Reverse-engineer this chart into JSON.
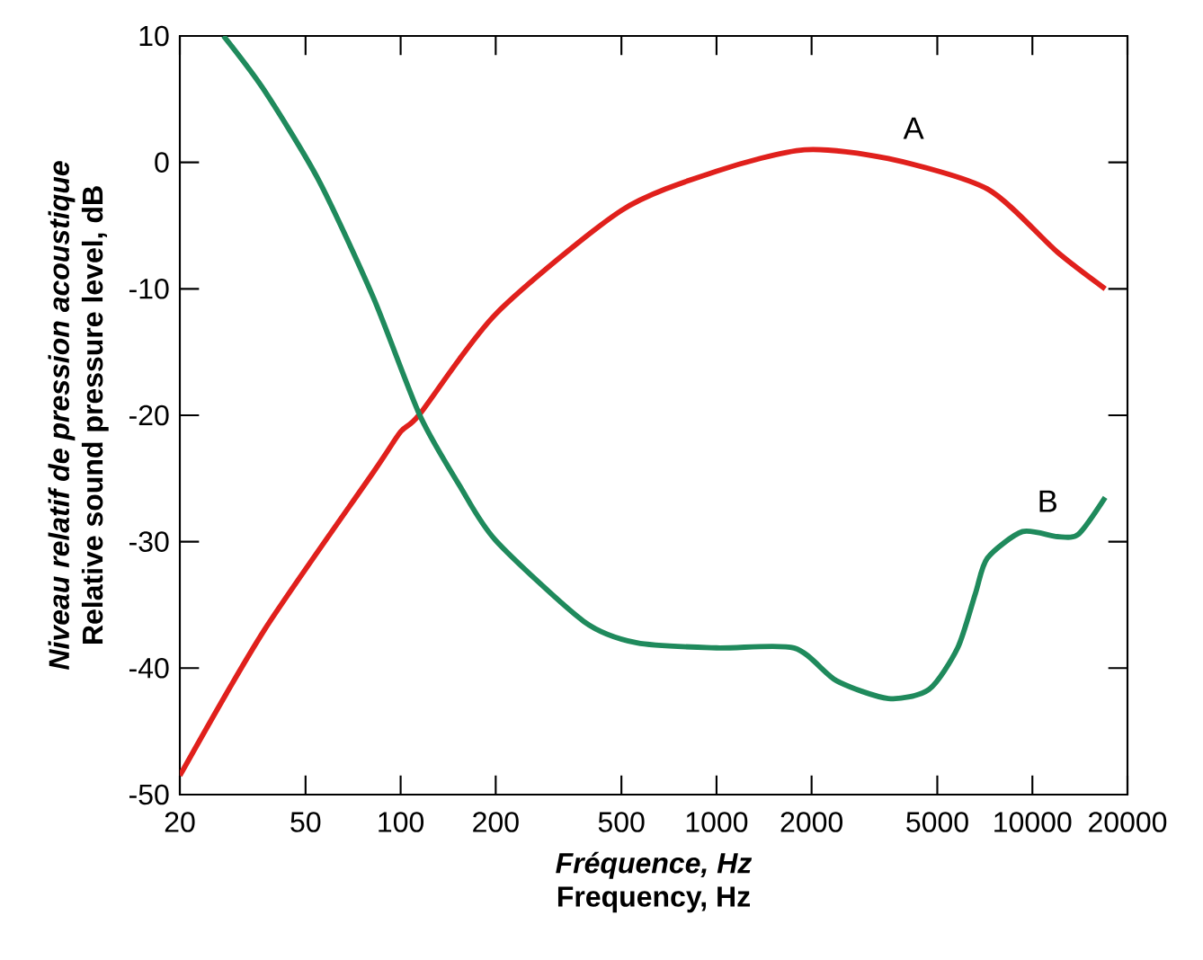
{
  "chart_data": {
    "type": "line",
    "xlabel": "*Fréquence, Hz*\nFrequency, Hz",
    "ylabel": "*Niveau relatif de pression acoustique*\nRelative sound pressure level, dB",
    "log": "x",
    "xlim": [
      20,
      20000
    ],
    "ylim": [
      -50,
      10
    ],
    "xticks": [
      20,
      50,
      100,
      200,
      500,
      1000,
      2000,
      5000,
      10000,
      20000
    ],
    "yticks": [
      -50,
      -40,
      -30,
      -20,
      -10,
      0,
      10
    ],
    "grid": false,
    "marker": "none",
    "line_style": "solid",
    "series": [
      {
        "name": "A",
        "color": "#e0201c",
        "x": [
          20,
          37,
          82,
          100,
          115,
          200,
          500,
          1000,
          1900,
          3500,
          7200,
          12000,
          17000
        ],
        "values": [
          -48.5,
          -37,
          -24.5,
          -21.3,
          -19.9,
          -12,
          -3.8,
          -0.7,
          1,
          0.3,
          -2.1,
          -7.1,
          -10
        ]
      },
      {
        "name": "B",
        "color": "#1f8a5c",
        "x": [
          27.5,
          37,
          55,
          82,
          115,
          154,
          200,
          380,
          560,
          1000,
          1760,
          2400,
          3500,
          4700,
          5800,
          6600,
          7200,
          9300,
          12000,
          14000,
          17000
        ],
        "values": [
          10,
          5.7,
          -1.4,
          -10.7,
          -20,
          -25.6,
          -29.9,
          -36.3,
          -38,
          -38.4,
          -38.4,
          -41,
          -42.4,
          -41.7,
          -38.4,
          -34.1,
          -31.3,
          -29.2,
          -29.6,
          -29.4,
          -26.5
        ]
      }
    ]
  }
}
